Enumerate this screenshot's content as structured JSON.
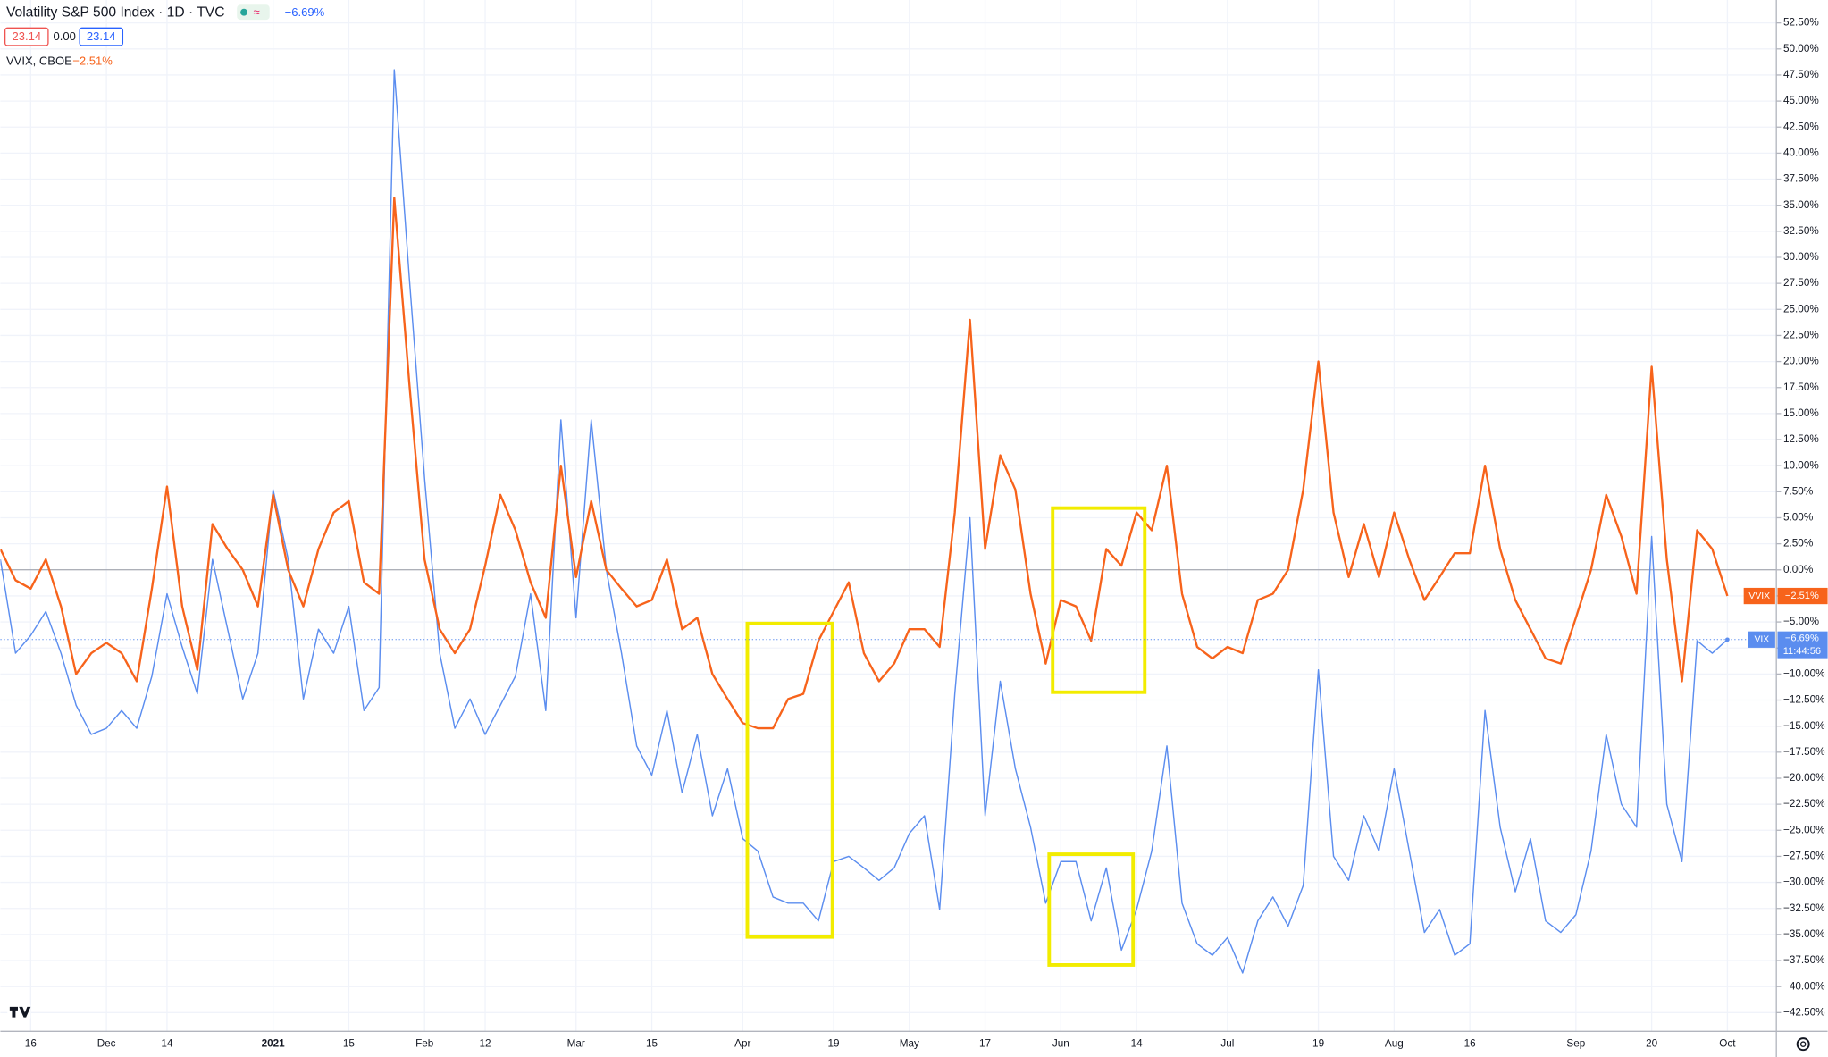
{
  "header": {
    "title": "Volatility S&P 500 Index · 1D · TVC",
    "change": "−6.69%",
    "bid": "23.14",
    "spread": "0.00",
    "ask": "23.14"
  },
  "legend2": {
    "name": "VVIX, CBOE",
    "change": "−2.51%"
  },
  "countdown": "11:44:56",
  "chart_data": {
    "type": "line",
    "categories": [
      null,
      null,
      "16",
      null,
      null,
      null,
      null,
      "Dec",
      null,
      null,
      null,
      "14",
      null,
      null,
      null,
      null,
      null,
      null,
      "2021",
      null,
      null,
      null,
      null,
      "15",
      null,
      null,
      null,
      null,
      "Feb",
      null,
      null,
      null,
      "12",
      null,
      null,
      null,
      null,
      null,
      "Mar",
      null,
      null,
      null,
      null,
      "15",
      null,
      null,
      null,
      null,
      null,
      "Apr",
      null,
      null,
      null,
      null,
      null,
      "19",
      null,
      null,
      null,
      null,
      "May",
      null,
      null,
      null,
      null,
      "17",
      null,
      null,
      null,
      null,
      "Jun",
      null,
      null,
      null,
      null,
      "14",
      null,
      null,
      null,
      null,
      null,
      "Jul",
      null,
      null,
      null,
      null,
      null,
      "19",
      null,
      null,
      null,
      null,
      "Aug",
      null,
      null,
      null,
      null,
      "16",
      null,
      null,
      null,
      null,
      null,
      null,
      "Sep",
      null,
      null,
      null,
      null,
      "20",
      null,
      null,
      null,
      null,
      "Oct"
    ],
    "series": [
      {
        "name": "VIX",
        "color": "#5b8def",
        "change_label": "−6.69%",
        "values": [
          1,
          -8,
          -6.3,
          -4,
          -8,
          -13,
          -15.8,
          -15.2,
          -13.5,
          -15.2,
          -10.2,
          -2.3,
          -7.4,
          -11.9,
          1,
          -5.7,
          -12.4,
          -8,
          7.7,
          1,
          -12.4,
          -5.7,
          -8,
          -3.5,
          -13.5,
          -11.3,
          48,
          27.9,
          8.8,
          -8,
          -15.2,
          -12.4,
          -15.8,
          -13,
          -10.2,
          -2.3,
          -13.5,
          14.4,
          -4.6,
          14.4,
          0,
          -8,
          -16.9,
          -19.7,
          -13.5,
          -21.4,
          -15.8,
          -23.6,
          -19.1,
          -25.8,
          -27,
          -31.4,
          -32,
          -32,
          -33.7,
          -28,
          -27.5,
          -28.6,
          -29.8,
          -28.6,
          -25.3,
          -23.6,
          -32.6,
          -11.9,
          5,
          -23.6,
          -10.7,
          -19.1,
          -24.7,
          -32,
          -28,
          -28,
          -33.7,
          -28.6,
          -36.5,
          -32.6,
          -27,
          -16.9,
          -32,
          -35.9,
          -37,
          -35.3,
          -38.7,
          -33.7,
          -31.4,
          -34.2,
          -30.3,
          -9.6,
          -27.5,
          -29.8,
          -23.6,
          -27,
          -19.1,
          -27,
          -34.8,
          -32.6,
          -37,
          -35.9,
          -13.5,
          -24.7,
          -30.9,
          -25.8,
          -33.7,
          -34.8,
          -33.1,
          -27,
          -15.8,
          -22.5,
          -24.7,
          3.2,
          -22.5,
          -28,
          -6.8,
          -8,
          -6.69
        ]
      },
      {
        "name": "VVIX",
        "color": "#f7631b",
        "change_label": "−2.51%",
        "values": [
          2,
          -1,
          -1.8,
          1,
          -3.5,
          -10,
          -8,
          -7,
          -8,
          -10.7,
          -1.8,
          8,
          -3.5,
          -9.6,
          4.4,
          2,
          0,
          -3.5,
          7.2,
          0,
          -3.5,
          2,
          5.5,
          6.6,
          -1.2,
          -2.3,
          35.7,
          17.8,
          1,
          -5.7,
          -8,
          -5.7,
          0.4,
          7.2,
          3.8,
          -1.2,
          -4.6,
          10,
          -0.7,
          6.6,
          0,
          -1.8,
          -3.5,
          -2.9,
          1,
          -5.7,
          -4.6,
          -10,
          -12.4,
          -14.7,
          -15.2,
          -15.2,
          -12.4,
          -11.9,
          -6.8,
          -4,
          -1.2,
          -8,
          -10.7,
          -9,
          -5.7,
          -5.7,
          -7.4,
          5.5,
          24,
          2,
          11,
          7.7,
          -2.3,
          -9,
          -2.9,
          -3.5,
          -6.8,
          2,
          0.4,
          5.5,
          3.8,
          10,
          -2.3,
          -7.4,
          -8.5,
          -7.4,
          -8,
          -2.9,
          -2.3,
          0,
          7.7,
          20,
          5.5,
          -0.7,
          4.4,
          -0.7,
          5.5,
          1,
          -2.9,
          -0.7,
          1.6,
          1.6,
          10,
          2,
          -2.9,
          -5.7,
          -8.5,
          -9,
          -4.6,
          0,
          7.2,
          3.2,
          -2.3,
          19.5,
          1,
          -10.7,
          3.8,
          2,
          -2.51
        ]
      }
    ],
    "ylim": [
      -44.3,
      54.7
    ],
    "yticks": [
      {
        "value": -42.5,
        "label": "−42.50%"
      },
      {
        "value": -40,
        "label": "−40.00%"
      },
      {
        "value": -37.5,
        "label": "−37.50%"
      },
      {
        "value": -35,
        "label": "−35.00%"
      },
      {
        "value": -32.5,
        "label": "−32.50%"
      },
      {
        "value": -30,
        "label": "−30.00%"
      },
      {
        "value": -27.5,
        "label": "−27.50%"
      },
      {
        "value": -25,
        "label": "−25.00%"
      },
      {
        "value": -22.5,
        "label": "−22.50%"
      },
      {
        "value": -20,
        "label": "−20.00%"
      },
      {
        "value": -17.5,
        "label": "−17.50%"
      },
      {
        "value": -15,
        "label": "−15.00%"
      },
      {
        "value": -12.5,
        "label": "−12.50%"
      },
      {
        "value": -10,
        "label": "−10.00%"
      },
      {
        "value": -7.5,
        "label": "−7.50%"
      },
      {
        "value": -5,
        "label": "−5.00%"
      },
      {
        "value": -2.5,
        "label": "−2.50%"
      },
      {
        "value": 0,
        "label": "0.00%"
      },
      {
        "value": 2.5,
        "label": "2.50%"
      },
      {
        "value": 5,
        "label": "5.00%"
      },
      {
        "value": 7.5,
        "label": "7.50%"
      },
      {
        "value": 10,
        "label": "10.00%"
      },
      {
        "value": 12.5,
        "label": "12.50%"
      },
      {
        "value": 15,
        "label": "15.00%"
      },
      {
        "value": 17.5,
        "label": "17.50%"
      },
      {
        "value": 20,
        "label": "20.00%"
      },
      {
        "value": 22.5,
        "label": "22.50%"
      },
      {
        "value": 25,
        "label": "25.00%"
      },
      {
        "value": 27.5,
        "label": "27.50%"
      },
      {
        "value": 30,
        "label": "30.00%"
      },
      {
        "value": 32.5,
        "label": "32.50%"
      },
      {
        "value": 35,
        "label": "35.00%"
      },
      {
        "value": 37.5,
        "label": "37.50%"
      },
      {
        "value": 40,
        "label": "40.00%"
      },
      {
        "value": 42.5,
        "label": "42.50%"
      },
      {
        "value": 45,
        "label": "45.00%"
      },
      {
        "value": 47.5,
        "label": "47.50%"
      },
      {
        "value": 50,
        "label": "50.00%"
      },
      {
        "value": 52.5,
        "label": "52.50%"
      }
    ],
    "grid": true
  }
}
